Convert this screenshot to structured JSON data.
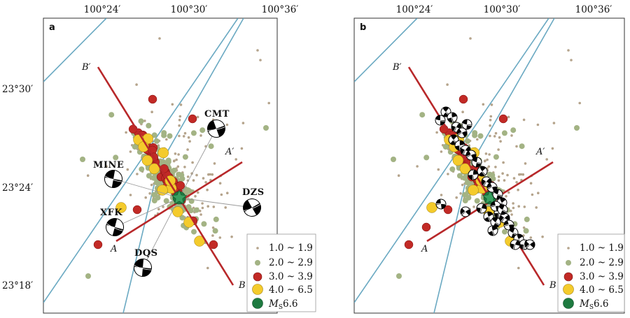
{
  "colors": {
    "mag_1_1_9": "#b5a48c",
    "mag_2_2_9": "#a3b384",
    "mag_3_3_9": "#c22a26",
    "mag_4_6_5": "#f4cb2c",
    "mainshock": "#1e7a40",
    "fault": "#6aa9c2",
    "profile": "#b8282a",
    "ray": "#9a9a9a"
  },
  "map": {
    "lon_ticks": [
      "100°24′",
      "100°30′",
      "100°36′"
    ],
    "lat_ticks": [
      "23°30′",
      "23°24′",
      "23°18′"
    ]
  },
  "panels": [
    {
      "label": "a",
      "profile_labels": [
        "A",
        "A′",
        "B",
        "B′"
      ],
      "stations": [
        "CMT",
        "MINE",
        "DZS",
        "XFK",
        "DQS"
      ],
      "legend": [
        "1.0 ~ 1.9",
        "2.0 ~ 2.9",
        "3.0 ~ 3.9",
        "4.0 ~ 6.5"
      ],
      "legend_main_sym": "M",
      "legend_main_sub": "S",
      "legend_main_val": "6.6"
    },
    {
      "label": "b",
      "profile_labels": [
        "A",
        "A′",
        "B",
        "B′"
      ],
      "stations": [],
      "legend": [
        "1.0 ~ 1.9",
        "2.0 ~ 2.9",
        "3.0 ~ 3.9",
        "4.0 ~ 6.5"
      ],
      "legend_main_sym": "M",
      "legend_main_sub": "S",
      "legend_main_val": "6.6"
    }
  ]
}
